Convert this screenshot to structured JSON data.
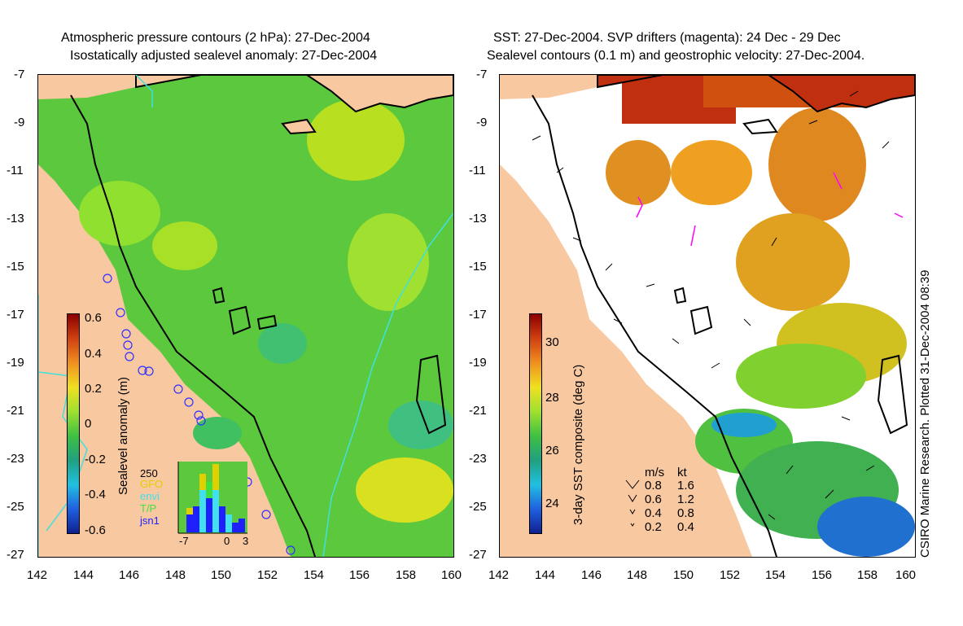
{
  "left_panel": {
    "title_line1": "Atmospheric pressure contours (2 hPa): 27-Dec-2004",
    "title_line2": "Isostatically adjusted sealevel anomaly: 27-Dec-2004",
    "colorbar_label": "Sealevel anomaly (m)",
    "colorbar_ticks": [
      "0.6",
      "0.4",
      "0.2",
      "0",
      "-0.2",
      "-0.4",
      "-0.6"
    ],
    "histogram": {
      "ymax_label": "250",
      "x_ticks": [
        "-7",
        "0",
        "3"
      ],
      "legend": [
        {
          "label": "GFO",
          "color": "#e0d000"
        },
        {
          "label": "envi",
          "color": "#40e0f0"
        },
        {
          "label": "T/P",
          "color": "#40e040"
        },
        {
          "label": "jsn1",
          "color": "#2020ff"
        }
      ]
    }
  },
  "right_panel": {
    "title_line1": "SST: 27-Dec-2004. SVP drifters (magenta): 24 Dec - 29 Dec",
    "title_line2": "Sealevel contours (0.1 m) and geostrophic velocity: 27-Dec-2004.",
    "colorbar_label": "3-day SST composite (deg C)",
    "colorbar_ticks": [
      "30",
      "28",
      "26",
      "24"
    ],
    "velocity_legend": {
      "header_ms": "m/s",
      "header_kt": "kt",
      "rows": [
        {
          "ms": "0.8",
          "kt": "1.6"
        },
        {
          "ms": "0.6",
          "kt": "1.2"
        },
        {
          "ms": "0.4",
          "kt": "0.8"
        },
        {
          "ms": "0.2",
          "kt": "0.4"
        }
      ]
    },
    "credit": "CSIRO Marine Research. Plotted 31-Dec-2004 08:39"
  },
  "axes": {
    "y_ticks": [
      "-7",
      "-9",
      "-11",
      "-13",
      "-15",
      "-17",
      "-19",
      "-21",
      "-23",
      "-25",
      "-27"
    ],
    "x_ticks": [
      "142",
      "144",
      "146",
      "148",
      "150",
      "152",
      "154",
      "156",
      "158",
      "160"
    ]
  },
  "colors": {
    "land": "#f8c8a0",
    "ocean_green": "#60d040",
    "coast": "#000000",
    "pressure_contour": "#40e0e0",
    "drifter": "#ff00ff"
  }
}
